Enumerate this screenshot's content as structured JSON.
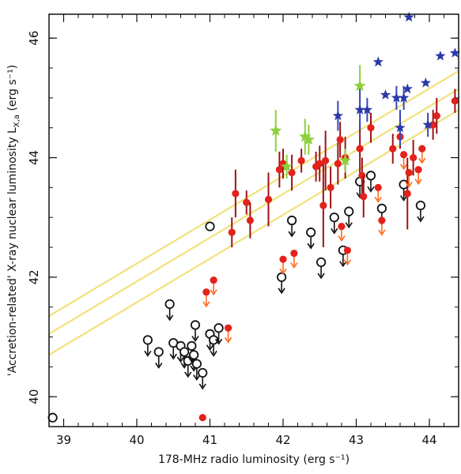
{
  "chart_data": {
    "type": "scatter",
    "title": "",
    "xlabel": "178-MHz radio luminosity (erg s⁻¹)",
    "ylabel": "'Accretion-related' X-ray nuclear luminosity L",
    "ylabel_sub": "X,a",
    "ylabel_units": " (erg s⁻¹)",
    "xlim": [
      38.8,
      44.4
    ],
    "ylim": [
      39.5,
      46.4
    ],
    "xticks": [
      39,
      40,
      41,
      42,
      43,
      44
    ],
    "yticks": [
      40,
      42,
      44,
      46
    ],
    "grid": false,
    "legend": "none",
    "colors": {
      "frame": "#111111",
      "open_circle": "#111111",
      "red": "#e3221c",
      "red_error": "#9e1313",
      "red_arrow": "#ff6a1a",
      "green": "#8cd03a",
      "blue": "#2a3aa8",
      "blue_error": "#3648b8",
      "fit_line": "#f0e27a"
    },
    "fit_lines": [
      {
        "x": [
          38.8,
          44.4
        ],
        "y": [
          41.35,
          45.45
        ]
      },
      {
        "x": [
          38.8,
          44.4
        ],
        "y": [
          41.05,
          45.15
        ]
      },
      {
        "x": [
          38.8,
          44.4
        ],
        "y": [
          40.7,
          44.8
        ]
      }
    ],
    "series": [
      {
        "marker": "open-circle-upper-limit",
        "points": [
          [
            38.85,
            39.65,
            0
          ],
          [
            40.15,
            40.95,
            1
          ],
          [
            40.3,
            40.75,
            1
          ],
          [
            40.45,
            41.55,
            1
          ],
          [
            40.5,
            40.9,
            1
          ],
          [
            40.6,
            40.85,
            1
          ],
          [
            40.65,
            40.75,
            1
          ],
          [
            40.7,
            40.6,
            1
          ],
          [
            40.75,
            40.85,
            1
          ],
          [
            40.78,
            40.7,
            1
          ],
          [
            40.8,
            41.2,
            1
          ],
          [
            40.82,
            40.55,
            1
          ],
          [
            40.9,
            40.4,
            1
          ],
          [
            41.0,
            41.05,
            1
          ],
          [
            41.05,
            40.95,
            1
          ],
          [
            41.12,
            41.15,
            1
          ],
          [
            41.0,
            42.85,
            0
          ],
          [
            41.98,
            42.0,
            1
          ],
          [
            42.12,
            42.95,
            1
          ],
          [
            42.38,
            42.75,
            1
          ],
          [
            42.52,
            42.25,
            1
          ],
          [
            42.7,
            43.0,
            1
          ],
          [
            42.82,
            42.45,
            1
          ],
          [
            42.9,
            43.1,
            1
          ],
          [
            43.05,
            43.6,
            1
          ],
          [
            43.2,
            43.7,
            1
          ],
          [
            43.35,
            43.15,
            1
          ],
          [
            43.65,
            43.55,
            1
          ],
          [
            43.88,
            43.2,
            1
          ]
        ]
      },
      {
        "marker": "red-dot",
        "points": [
          [
            40.9,
            39.65,
            0,
            0
          ],
          [
            40.95,
            41.75,
            1,
            0
          ],
          [
            41.05,
            41.95,
            1,
            0
          ],
          [
            41.25,
            41.15,
            1,
            0
          ],
          [
            41.3,
            42.75,
            0,
            0.25
          ],
          [
            41.35,
            43.4,
            0,
            0.4
          ],
          [
            41.5,
            43.25,
            0,
            0.2
          ],
          [
            41.55,
            42.95,
            0,
            0.3
          ],
          [
            41.8,
            43.3,
            0,
            0.45
          ],
          [
            41.95,
            43.8,
            0,
            0.3
          ],
          [
            42.0,
            43.9,
            0,
            0.25
          ],
          [
            42.0,
            42.3,
            1,
            0
          ],
          [
            42.12,
            43.75,
            0,
            0.3
          ],
          [
            42.15,
            42.4,
            1,
            0
          ],
          [
            42.25,
            43.95,
            0,
            0.2
          ],
          [
            42.45,
            43.85,
            0,
            0.25
          ],
          [
            42.5,
            43.9,
            0,
            0.3
          ],
          [
            42.55,
            43.2,
            0,
            0.7
          ],
          [
            42.58,
            43.95,
            0,
            0.5
          ],
          [
            42.65,
            43.5,
            0,
            0.35
          ],
          [
            42.75,
            43.9,
            0,
            0.35
          ],
          [
            42.78,
            44.3,
            0,
            0.3
          ],
          [
            42.8,
            42.85,
            1,
            0
          ],
          [
            42.85,
            44.0,
            0,
            0.35
          ],
          [
            42.88,
            42.45,
            1,
            0
          ],
          [
            43.05,
            44.15,
            0,
            0.45
          ],
          [
            43.08,
            43.7,
            0,
            0.3
          ],
          [
            43.1,
            43.35,
            0,
            0.35
          ],
          [
            43.2,
            44.5,
            0,
            0.25
          ],
          [
            43.3,
            43.5,
            1,
            0
          ],
          [
            43.35,
            42.95,
            1,
            0
          ],
          [
            43.5,
            44.15,
            0,
            0.25
          ],
          [
            43.6,
            44.35,
            0,
            0.2
          ],
          [
            43.65,
            44.05,
            1,
            0
          ],
          [
            43.7,
            43.4,
            0,
            0.6
          ],
          [
            43.72,
            43.75,
            1,
            0
          ],
          [
            43.78,
            44.0,
            0,
            0.3
          ],
          [
            43.85,
            43.8,
            1,
            0
          ],
          [
            43.9,
            44.15,
            1,
            0
          ],
          [
            44.05,
            44.55,
            0,
            0.25
          ],
          [
            44.1,
            44.7,
            0,
            0.3
          ],
          [
            44.35,
            44.95,
            0,
            0.2
          ]
        ]
      },
      {
        "marker": "green-star",
        "points": [
          [
            41.9,
            44.45,
            0.35
          ],
          [
            42.05,
            43.85,
            0.2
          ],
          [
            42.3,
            44.35,
            0.3
          ],
          [
            42.35,
            44.3,
            0.25
          ],
          [
            42.85,
            43.95,
            0.2
          ],
          [
            43.05,
            45.2,
            0.35
          ]
        ]
      },
      {
        "marker": "blue-star",
        "points": [
          [
            42.75,
            44.7,
            0.25
          ],
          [
            43.05,
            44.8,
            0.35
          ],
          [
            43.15,
            44.8,
            0.2
          ],
          [
            43.3,
            45.6,
            0
          ],
          [
            43.4,
            45.05,
            0
          ],
          [
            43.55,
            45.0,
            0.2
          ],
          [
            43.6,
            44.5,
            0.3
          ],
          [
            43.65,
            45.0,
            0.2
          ],
          [
            43.7,
            45.15,
            0
          ],
          [
            43.72,
            46.35,
            0
          ],
          [
            43.95,
            45.25,
            0
          ],
          [
            43.98,
            44.55,
            0.2
          ],
          [
            44.15,
            45.7,
            0
          ],
          [
            44.35,
            45.75,
            0
          ]
        ]
      }
    ]
  }
}
